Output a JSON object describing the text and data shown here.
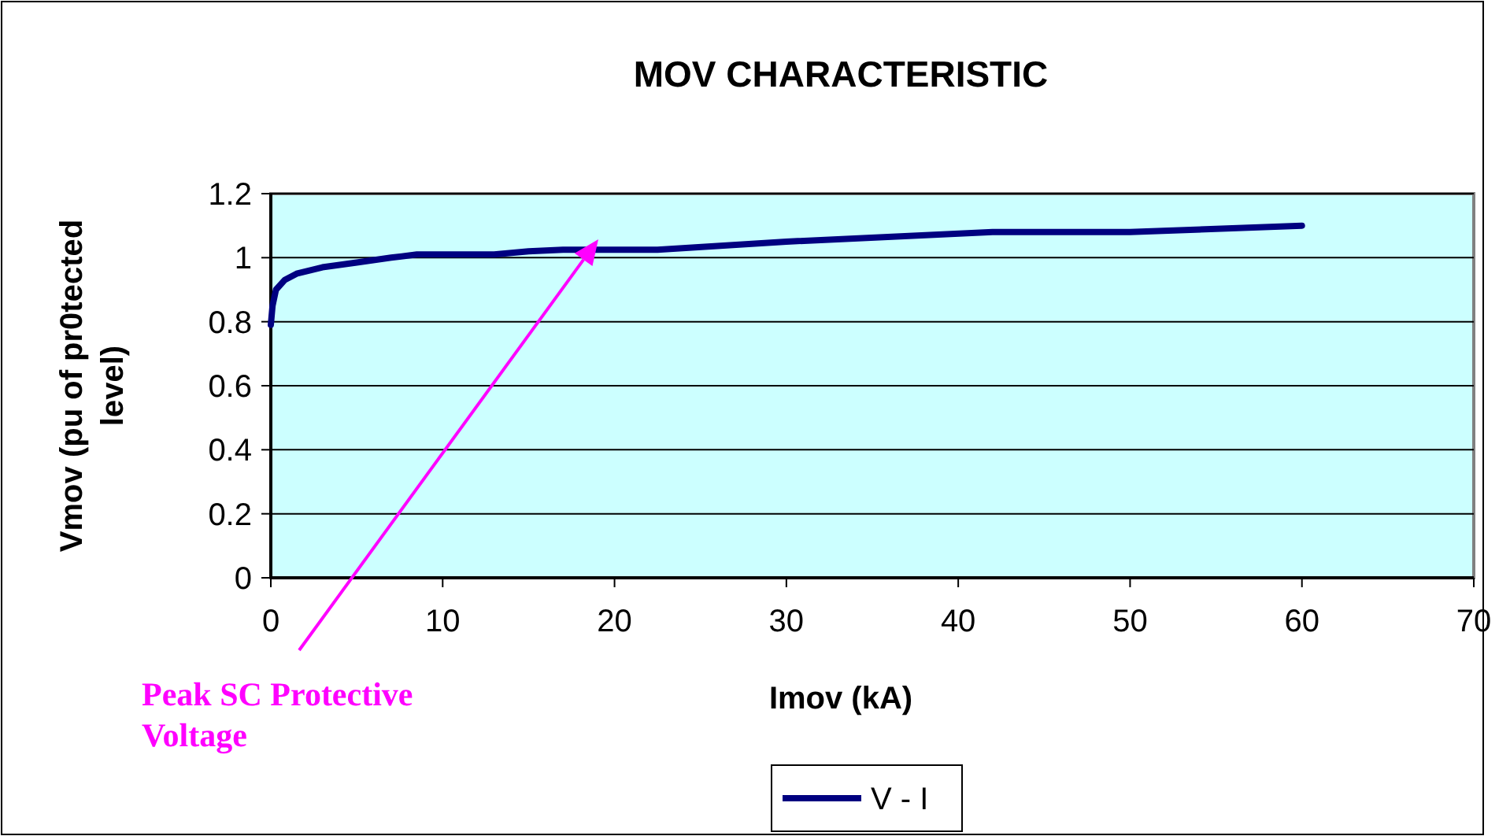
{
  "chart_data": {
    "type": "line",
    "title": "MOV CHARACTERISTIC",
    "xlabel": "Imov (kA)",
    "ylabel": "Vmov (pu of pr0tected level)",
    "x": [
      0,
      0.1,
      0.3,
      0.8,
      1.5,
      3,
      5,
      7,
      8.5,
      13,
      15,
      17,
      22.5,
      30,
      42,
      50,
      60
    ],
    "series": [
      {
        "name": "V - I",
        "color": "#000080",
        "values": [
          0.79,
          0.85,
          0.9,
          0.93,
          0.95,
          0.97,
          0.985,
          1.0,
          1.01,
          1.01,
          1.02,
          1.025,
          1.025,
          1.05,
          1.08,
          1.08,
          1.1
        ]
      }
    ],
    "xlim": [
      0,
      70
    ],
    "xticks": [
      0,
      10,
      20,
      30,
      40,
      50,
      60,
      70
    ],
    "ylim": [
      0,
      1.2
    ],
    "yticks": [
      0,
      0.2,
      0.4,
      0.6,
      0.8,
      1,
      1.2
    ],
    "grid": "y",
    "legend": "bottom",
    "marker": "none",
    "line_style": "solid",
    "annotations": [
      "Peak SC Protective Voltage"
    ]
  }
}
